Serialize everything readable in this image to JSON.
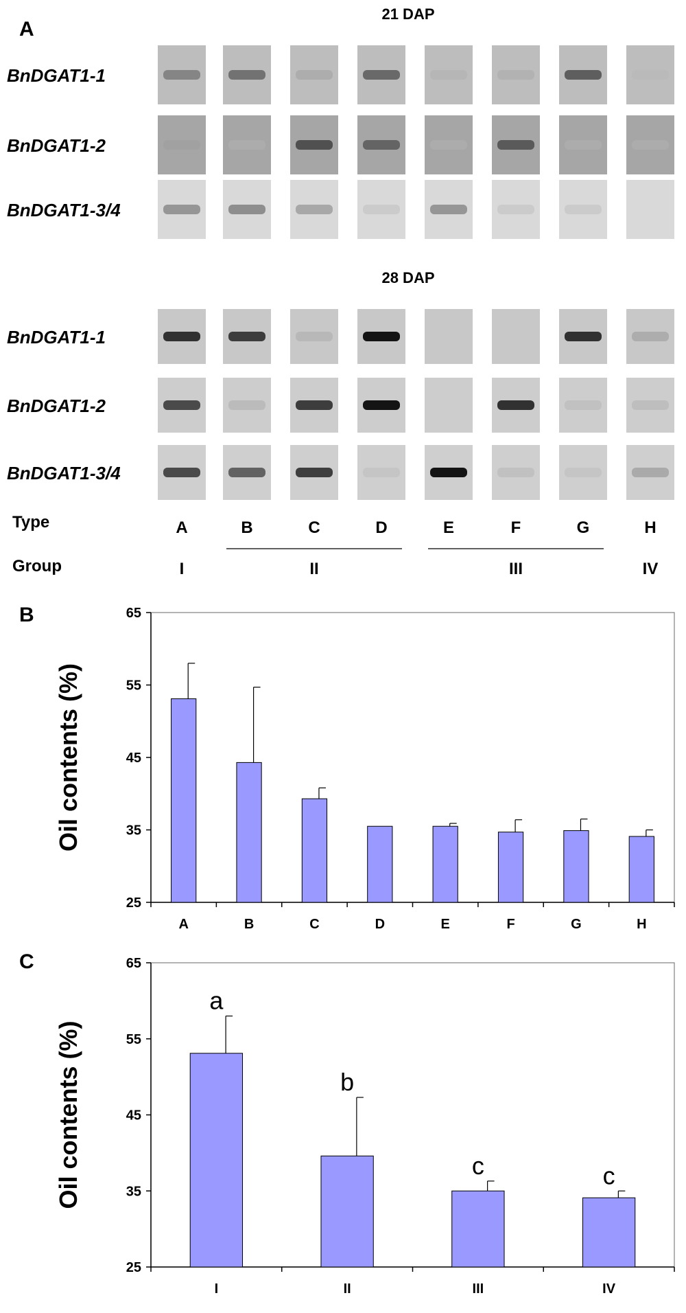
{
  "panel_a": {
    "letter": "A",
    "lanes": [
      "A",
      "B",
      "C",
      "D",
      "E",
      "F",
      "G",
      "H"
    ],
    "type_label": "Type",
    "group_label": "Group",
    "groups": [
      {
        "name": "I",
        "from": 0,
        "to": 0,
        "line": false
      },
      {
        "name": "II",
        "from": 1,
        "to": 3,
        "line": true
      },
      {
        "name": "III",
        "from": 4,
        "to": 6,
        "line": true
      },
      {
        "name": "IV",
        "from": 7,
        "to": 7,
        "line": false
      }
    ],
    "stages": [
      {
        "title": "21 DAP",
        "rows": [
          {
            "gene": "BnDGAT1-1",
            "background": "#bdbdbd",
            "bands": [
              0.5,
              0.6,
              0.2,
              0.65,
              0.1,
              0.15,
              0.7,
              0.05
            ]
          },
          {
            "gene": "BnDGAT1-2",
            "background": "#a6a6a6",
            "bands": [
              0.2,
              0.05,
              0.75,
              0.65,
              0.05,
              0.7,
              0.05,
              0.05
            ]
          },
          {
            "gene": "BnDGAT1-3/4",
            "background": "#d9d9d9",
            "bands": [
              0.45,
              0.5,
              0.35,
              0.05,
              0.45,
              0.05,
              0.05,
              0.02
            ]
          }
        ]
      },
      {
        "title": "28 DAP",
        "rows": [
          {
            "gene": "BnDGAT1-1",
            "background": "#c8c8c8",
            "bands": [
              0.9,
              0.85,
              0.15,
              1.0,
              0.0,
              0.0,
              0.9,
              0.25
            ]
          },
          {
            "gene": "BnDGAT1-2",
            "background": "#cdcdcd",
            "bands": [
              0.8,
              0.15,
              0.85,
              1.0,
              0.0,
              0.9,
              0.08,
              0.12
            ]
          },
          {
            "gene": "BnDGAT1-3/4",
            "background": "#cfcfcf",
            "bands": [
              0.8,
              0.7,
              0.85,
              0.05,
              1.0,
              0.1,
              0.05,
              0.3
            ]
          }
        ]
      }
    ]
  },
  "chart_data": [
    {
      "panel": "B",
      "type": "bar",
      "categories": [
        "A",
        "B",
        "C",
        "D",
        "E",
        "F",
        "G",
        "H"
      ],
      "values": [
        53.1,
        44.3,
        39.3,
        35.5,
        35.5,
        34.7,
        34.9,
        34.1
      ],
      "errors": [
        4.9,
        10.4,
        1.5,
        0.0,
        0.4,
        1.7,
        1.6,
        0.9
      ],
      "ylabel": "Oil contents (%)",
      "ylim": [
        25,
        65
      ],
      "yticks": [
        25,
        35,
        45,
        55,
        65
      ],
      "bar_color": "#9999ff",
      "grid": false
    },
    {
      "panel": "C",
      "type": "bar",
      "categories": [
        "I",
        "II",
        "III",
        "IV"
      ],
      "values": [
        53.1,
        39.6,
        35.0,
        34.1
      ],
      "errors": [
        4.9,
        7.7,
        1.3,
        0.9
      ],
      "significance": [
        "a",
        "b",
        "c",
        "c"
      ],
      "ylabel": "Oil contents (%)",
      "ylim": [
        25,
        65
      ],
      "yticks": [
        25,
        35,
        45,
        55,
        65
      ],
      "bar_color": "#9999ff",
      "grid": false
    }
  ]
}
